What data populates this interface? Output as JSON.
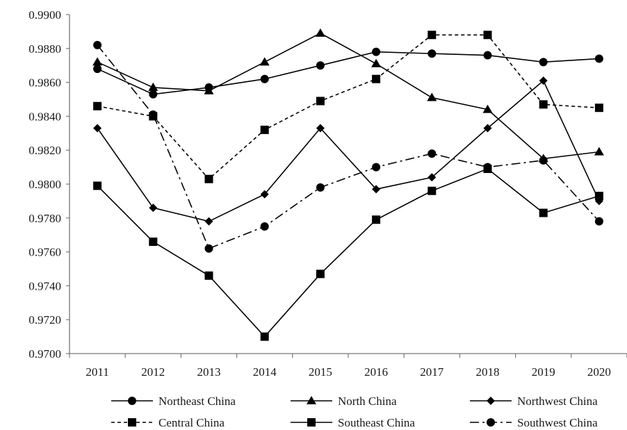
{
  "chart_data": {
    "type": "line",
    "title": "",
    "xlabel": "",
    "ylabel": "",
    "x": [
      "2011",
      "2012",
      "2013",
      "2014",
      "2015",
      "2016",
      "2017",
      "2018",
      "2019",
      "2020"
    ],
    "ylim": [
      0.97,
      0.99
    ],
    "ytick_step": 0.002,
    "ytick_labels": [
      "0.9700",
      "0.9720",
      "0.9740",
      "0.9760",
      "0.9780",
      "0.9800",
      "0.9820",
      "0.9840",
      "0.9860",
      "0.9880",
      "0.9900"
    ],
    "grid": false,
    "legend_position": "bottom",
    "series": [
      {
        "name": "Northeast China",
        "marker": "circle",
        "line": "solid",
        "values": [
          0.9868,
          0.9853,
          0.9857,
          0.9862,
          0.987,
          0.9878,
          0.9877,
          0.9876,
          0.9872,
          0.9874
        ]
      },
      {
        "name": "North China",
        "marker": "triangle",
        "line": "solid",
        "values": [
          0.9872,
          0.9857,
          0.9855,
          0.9872,
          0.9889,
          0.9871,
          0.9851,
          0.9844,
          0.9815,
          0.9819
        ]
      },
      {
        "name": "Northwest China",
        "marker": "diamond",
        "line": "solid",
        "values": [
          0.9833,
          0.9786,
          0.9778,
          0.9794,
          0.9833,
          0.9797,
          0.9804,
          0.9833,
          0.9861,
          0.979
        ]
      },
      {
        "name": "Central China",
        "marker": "square",
        "line": "dashed",
        "values": [
          0.9846,
          0.984,
          0.9803,
          0.9832,
          0.9849,
          0.9862,
          0.9888,
          0.9888,
          0.9847,
          0.9845
        ]
      },
      {
        "name": "Southeast China",
        "marker": "square",
        "line": "solid",
        "values": [
          0.9799,
          0.9766,
          0.9746,
          0.971,
          0.9747,
          0.9779,
          0.9796,
          0.9809,
          0.9783,
          0.9793
        ]
      },
      {
        "name": "Southwest China",
        "marker": "circle",
        "line": "dashdot",
        "values": [
          0.9882,
          0.9841,
          0.9762,
          0.9775,
          0.9798,
          0.981,
          0.9818,
          0.981,
          0.9814,
          0.9778
        ]
      }
    ],
    "line_color": "#000000"
  }
}
